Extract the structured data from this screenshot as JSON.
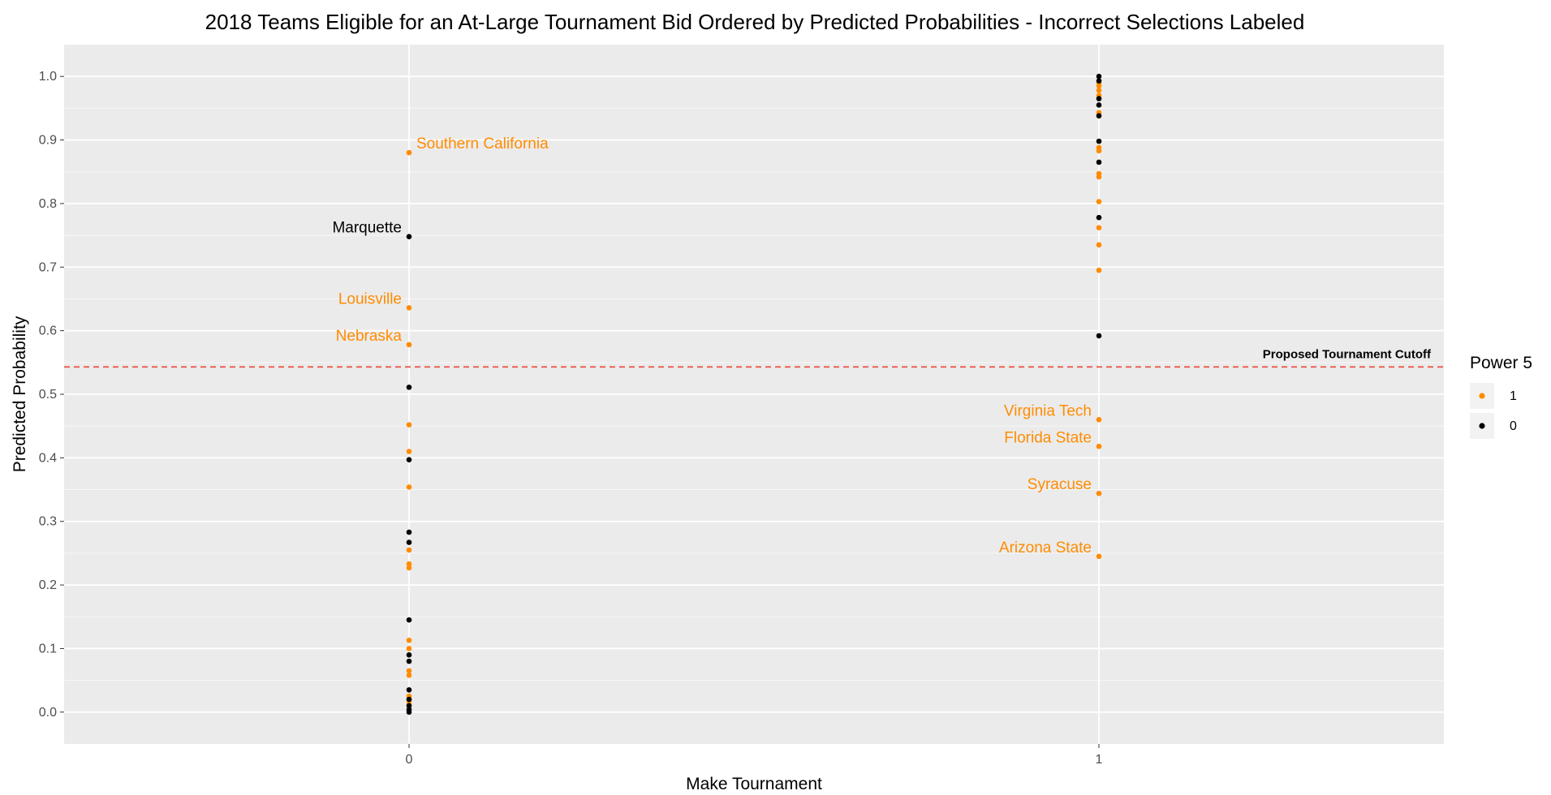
{
  "chart_data": {
    "type": "scatter",
    "title": "2018 Teams Eligible for an At-Large Tournament Bid Ordered by Predicted Probabilities - Incorrect Selections Labeled",
    "xlabel": "Make Tournament",
    "ylabel": "Predicted Probability",
    "x_categories": [
      "0",
      "1"
    ],
    "xlim": [
      -0.5,
      1.5
    ],
    "ylim": [
      -0.05,
      1.05
    ],
    "y_ticks": [
      "0.0",
      "0.1",
      "0.2",
      "0.3",
      "0.4",
      "0.5",
      "0.6",
      "0.7",
      "0.8",
      "0.9",
      "1.0"
    ],
    "grid": true,
    "background": "#ebebeb",
    "cutoff": {
      "y": 0.543,
      "label": "Proposed Tournament Cutoff",
      "color": "#e8483a"
    },
    "legend": {
      "title": "Power 5",
      "placement": "right",
      "entries": [
        {
          "label": "1",
          "color": "#ff8c00"
        },
        {
          "label": "0",
          "color": "#000000"
        }
      ]
    },
    "series": [
      {
        "name": "1",
        "color": "#ff8c00",
        "points": [
          {
            "x": 0,
            "y": 0.88,
            "label": "Southern California"
          },
          {
            "x": 0,
            "y": 0.636,
            "label": "Louisville"
          },
          {
            "x": 0,
            "y": 0.578,
            "label": "Nebraska"
          },
          {
            "x": 0,
            "y": 0.452
          },
          {
            "x": 0,
            "y": 0.41
          },
          {
            "x": 0,
            "y": 0.354
          },
          {
            "x": 0,
            "y": 0.255
          },
          {
            "x": 0,
            "y": 0.233
          },
          {
            "x": 0,
            "y": 0.227
          },
          {
            "x": 0,
            "y": 0.113
          },
          {
            "x": 0,
            "y": 0.1
          },
          {
            "x": 0,
            "y": 0.065
          },
          {
            "x": 0,
            "y": 0.058
          },
          {
            "x": 0,
            "y": 0.025
          },
          {
            "x": 0,
            "y": 0.018
          },
          {
            "x": 0,
            "y": 0.012
          },
          {
            "x": 1,
            "y": 0.46,
            "label": "Virginia Tech"
          },
          {
            "x": 1,
            "y": 0.418,
            "label": "Florida State"
          },
          {
            "x": 1,
            "y": 0.344,
            "label": "Syracuse"
          },
          {
            "x": 1,
            "y": 0.245,
            "label": "Arizona State"
          },
          {
            "x": 1,
            "y": 0.99
          },
          {
            "x": 1,
            "y": 0.985
          },
          {
            "x": 1,
            "y": 0.978
          },
          {
            "x": 1,
            "y": 0.97
          },
          {
            "x": 1,
            "y": 0.943
          },
          {
            "x": 1,
            "y": 0.888
          },
          {
            "x": 1,
            "y": 0.883
          },
          {
            "x": 1,
            "y": 0.847
          },
          {
            "x": 1,
            "y": 0.842
          },
          {
            "x": 1,
            "y": 0.803
          },
          {
            "x": 1,
            "y": 0.762
          },
          {
            "x": 1,
            "y": 0.735
          },
          {
            "x": 1,
            "y": 0.695
          }
        ]
      },
      {
        "name": "0",
        "color": "#000000",
        "points": [
          {
            "x": 0,
            "y": 0.748,
            "label": "Marquette"
          },
          {
            "x": 0,
            "y": 0.511
          },
          {
            "x": 0,
            "y": 0.397
          },
          {
            "x": 0,
            "y": 0.283
          },
          {
            "x": 0,
            "y": 0.267
          },
          {
            "x": 0,
            "y": 0.145
          },
          {
            "x": 0,
            "y": 0.09
          },
          {
            "x": 0,
            "y": 0.08
          },
          {
            "x": 0,
            "y": 0.035
          },
          {
            "x": 0,
            "y": 0.02
          },
          {
            "x": 0,
            "y": 0.01
          },
          {
            "x": 0,
            "y": 0.004
          },
          {
            "x": 0,
            "y": 0.0
          },
          {
            "x": 1,
            "y": 1.0
          },
          {
            "x": 1,
            "y": 0.993
          },
          {
            "x": 1,
            "y": 0.965
          },
          {
            "x": 1,
            "y": 0.955
          },
          {
            "x": 1,
            "y": 0.938
          },
          {
            "x": 1,
            "y": 0.898
          },
          {
            "x": 1,
            "y": 0.865
          },
          {
            "x": 1,
            "y": 0.778
          },
          {
            "x": 1,
            "y": 0.592
          }
        ]
      }
    ]
  }
}
